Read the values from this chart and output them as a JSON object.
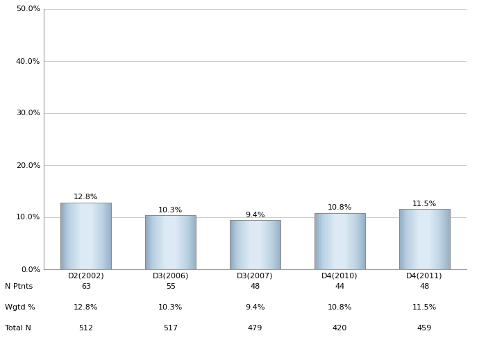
{
  "categories": [
    "D2(2002)",
    "D3(2006)",
    "D3(2007)",
    "D4(2010)",
    "D4(2011)"
  ],
  "values": [
    12.8,
    10.3,
    9.4,
    10.8,
    11.5
  ],
  "labels": [
    "12.8%",
    "10.3%",
    "9.4%",
    "10.8%",
    "11.5%"
  ],
  "n_ptnts": [
    63,
    55,
    48,
    44,
    48
  ],
  "wgtd_pct": [
    "12.8%",
    "10.3%",
    "9.4%",
    "10.8%",
    "11.5%"
  ],
  "total_n": [
    512,
    517,
    479,
    420,
    459
  ],
  "ylim": [
    0,
    50
  ],
  "yticks": [
    0,
    10,
    20,
    30,
    40,
    50
  ],
  "ytick_labels": [
    "0.0%",
    "10.0%",
    "20.0%",
    "30.0%",
    "40.0%",
    "50.0%"
  ],
  "grid_color": "#cccccc",
  "table_row_labels": [
    "N Ptnts",
    "Wgtd %",
    "Total N"
  ],
  "label_fontsize": 8,
  "tick_fontsize": 8,
  "table_fontsize": 8,
  "gradient_colors": [
    [
      0.0,
      "#8fa8c0"
    ],
    [
      0.15,
      "#b8cfe0"
    ],
    [
      0.4,
      "#ddeaf5"
    ],
    [
      0.6,
      "#ddeaf5"
    ],
    [
      0.85,
      "#b8cfe0"
    ],
    [
      1.0,
      "#9ab0c5"
    ]
  ]
}
